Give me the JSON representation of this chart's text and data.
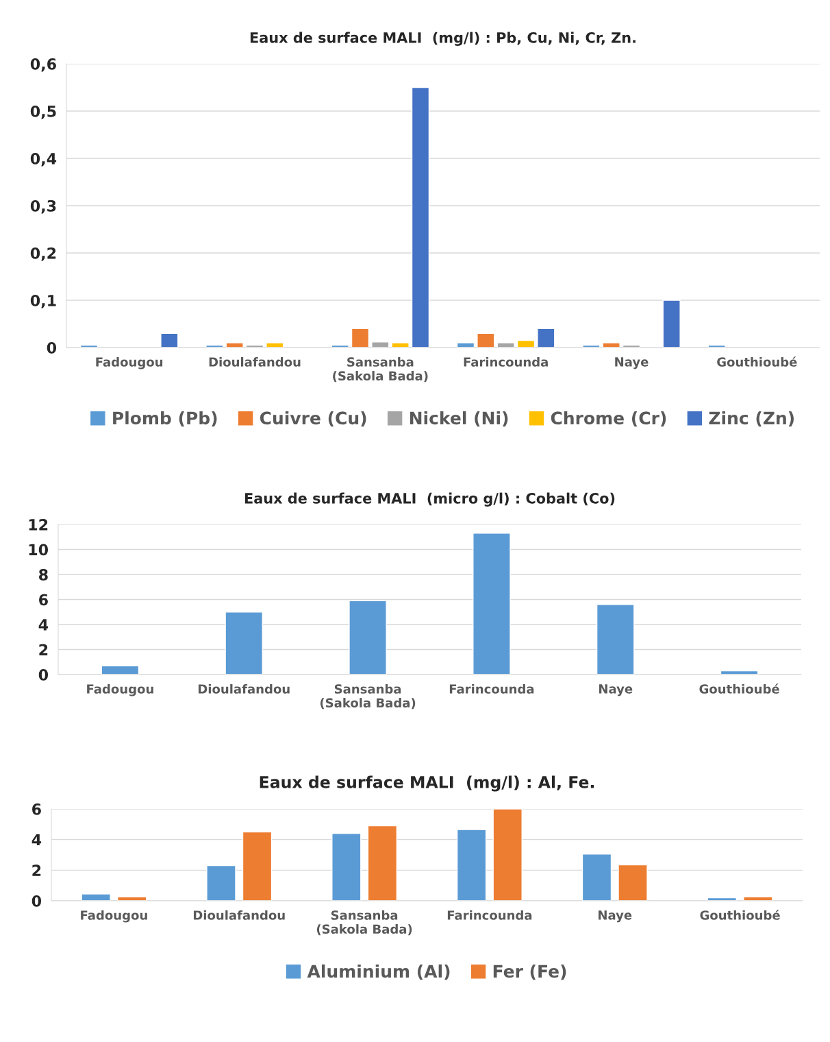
{
  "chart_data": [
    {
      "type": "bar",
      "title": "Eaux de surface MALI  (mg/l) : Pb, Cu, Ni, Cr, Zn.",
      "categories": [
        "Fadougou",
        "Dioulafandou",
        "Sansanba\n(Sakola Bada)",
        "Farincounda",
        "Naye",
        "Gouthioubé"
      ],
      "series": [
        {
          "name": "Plomb (Pb)",
          "color": "#5b9bd5",
          "values": [
            0.005,
            0.005,
            0.005,
            0.01,
            0.005,
            0.005
          ]
        },
        {
          "name": "Cuivre (Cu)",
          "color": "#ed7d31",
          "values": [
            null,
            0.01,
            0.04,
            0.03,
            0.01,
            null
          ]
        },
        {
          "name": "Nickel (Ni)",
          "color": "#a5a5a5",
          "values": [
            null,
            0.005,
            0.012,
            0.01,
            0.005,
            null
          ]
        },
        {
          "name": "Chrome (Cr)",
          "color": "#ffc000",
          "values": [
            null,
            0.01,
            0.01,
            0.015,
            null,
            null
          ]
        },
        {
          "name": "Zinc (Zn)",
          "color": "#4472c4",
          "values": [
            0.03,
            null,
            0.55,
            0.04,
            0.1,
            null
          ]
        }
      ],
      "ylim": [
        0,
        0.6
      ],
      "yticks": [
        0,
        {
          "value": 0.1,
          "label": "0,1"
        },
        {
          "value": 0.2,
          "label": "0,2"
        },
        {
          "value": 0.3,
          "label": "0,3"
        },
        {
          "value": 0.4,
          "label": "0,4"
        },
        {
          "value": 0.5,
          "label": "0,5"
        },
        {
          "value": 0.6,
          "label": "0,6"
        }
      ],
      "grid": "y",
      "legend": "bottom"
    },
    {
      "type": "bar",
      "title": "Eaux de surface MALI  (micro g/l) : Cobalt (Co)",
      "categories": [
        "Fadougou",
        "Dioulafandou",
        "Sansanba\n(Sakola Bada)",
        "Farincounda",
        "Naye",
        "Gouthioubé"
      ],
      "series": [
        {
          "color": "#5b9bd5",
          "values": [
            0.7,
            5.0,
            5.9,
            11.3,
            5.6,
            0.3
          ]
        }
      ],
      "ylim": [
        0,
        12
      ],
      "yticks": [
        0,
        2,
        4,
        6,
        8,
        10,
        12
      ],
      "grid": "y",
      "legend": false
    },
    {
      "type": "bar",
      "title": "Eaux de surface MALI  (mg/l) : Al, Fe.",
      "categories": [
        "Fadougou",
        "Dioulafandou",
        "Sansanba\n(Sakola Bada)",
        "Farincounda",
        "Naye",
        "Gouthioubé"
      ],
      "series": [
        {
          "name": "Aluminium (Al)",
          "color": "#5b9bd5",
          "values": [
            0.45,
            2.3,
            4.4,
            4.65,
            3.05,
            0.2
          ]
        },
        {
          "name": "Fer (Fe)",
          "color": "#ed7d31",
          "values": [
            0.25,
            4.5,
            4.9,
            6.0,
            2.35,
            0.25
          ]
        }
      ],
      "ylim": [
        0,
        6
      ],
      "yticks": [
        0,
        2,
        4,
        6
      ],
      "grid": "y",
      "legend": "bottom"
    }
  ]
}
